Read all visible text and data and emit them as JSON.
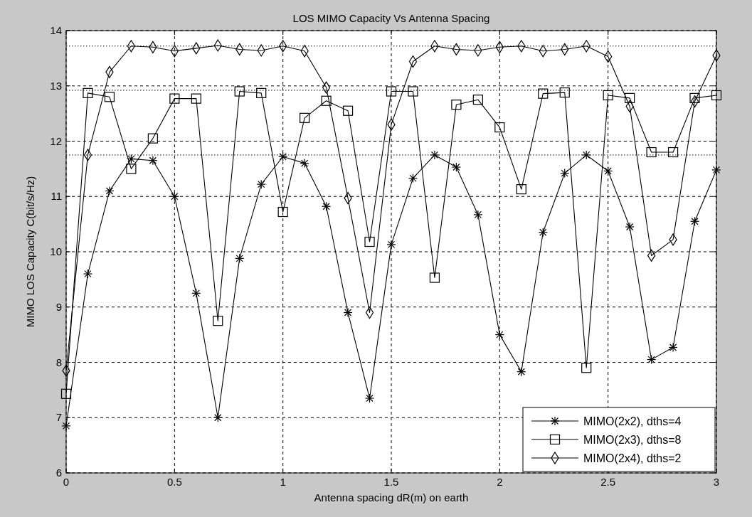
{
  "chart_data": {
    "type": "line",
    "title": "LOS MIMO Capacity Vs Antenna Spacing",
    "xlabel": "Antenna spacing dR(m) on earth",
    "ylabel": "MIMO LOS Capacity C(bit/s/Hz)",
    "x": [
      0,
      0.1,
      0.2,
      0.3,
      0.4,
      0.5,
      0.6,
      0.7,
      0.8,
      0.9,
      1,
      1.1,
      1.2,
      1.3,
      1.4,
      1.5,
      1.6,
      1.7,
      1.8,
      1.9,
      2,
      2.1,
      2.2,
      2.3,
      2.4,
      2.5,
      2.6,
      2.7,
      2.8,
      2.9,
      3
    ],
    "series": [
      {
        "name": "MIMO(2x2), dths=4",
        "color": "#000000",
        "marker": "cross",
        "values": [
          6.85,
          9.6,
          11.1,
          11.68,
          11.65,
          11.0,
          9.25,
          7.0,
          9.88,
          11.22,
          11.72,
          11.6,
          10.82,
          8.9,
          7.35,
          10.13,
          11.33,
          11.75,
          11.53,
          10.67,
          8.5,
          7.83,
          10.35,
          11.42,
          11.75,
          11.46,
          10.45,
          8.05,
          8.27,
          10.55,
          11.48
        ]
      },
      {
        "name": "MIMO(2x3), dths=8",
        "color": "#000000",
        "marker": "square",
        "values": [
          7.43,
          12.87,
          12.8,
          11.5,
          12.05,
          12.77,
          12.77,
          8.75,
          12.9,
          12.87,
          10.72,
          12.42,
          12.73,
          12.55,
          10.18,
          12.9,
          12.9,
          9.53,
          12.66,
          12.75,
          12.25,
          11.13,
          12.86,
          12.88,
          7.9,
          12.83,
          12.78,
          11.8,
          11.8,
          12.78,
          12.83
        ]
      },
      {
        "name": "MIMO(2x4), dths=2",
        "color": "#000000",
        "marker": "diamond",
        "values": [
          7.85,
          11.75,
          13.25,
          13.72,
          13.7,
          13.63,
          13.68,
          13.73,
          13.66,
          13.64,
          13.72,
          13.63,
          12.97,
          10.97,
          8.9,
          12.3,
          13.44,
          13.72,
          13.66,
          13.64,
          13.7,
          13.72,
          13.63,
          13.66,
          13.72,
          13.53,
          12.63,
          9.93,
          10.22,
          12.72,
          13.55
        ]
      }
    ],
    "xlim": [
      0,
      3
    ],
    "xticks": [
      0,
      0.5,
      1,
      1.5,
      2,
      2.5,
      3
    ],
    "ylim": [
      6,
      14
    ],
    "yticks": [
      6,
      7,
      8,
      9,
      10,
      11,
      12,
      13,
      14
    ],
    "grid": true,
    "legend": "bottom right",
    "line_style": "solid",
    "ref_lines": [
      {
        "axis": "y",
        "value": 13.72,
        "line_style": "dotted",
        "color": "#000000"
      },
      {
        "axis": "y",
        "value": 12.92,
        "line_style": "dotted",
        "color": "#000000"
      },
      {
        "axis": "y",
        "value": 11.75,
        "line_style": "dotted",
        "color": "#000000"
      }
    ]
  }
}
